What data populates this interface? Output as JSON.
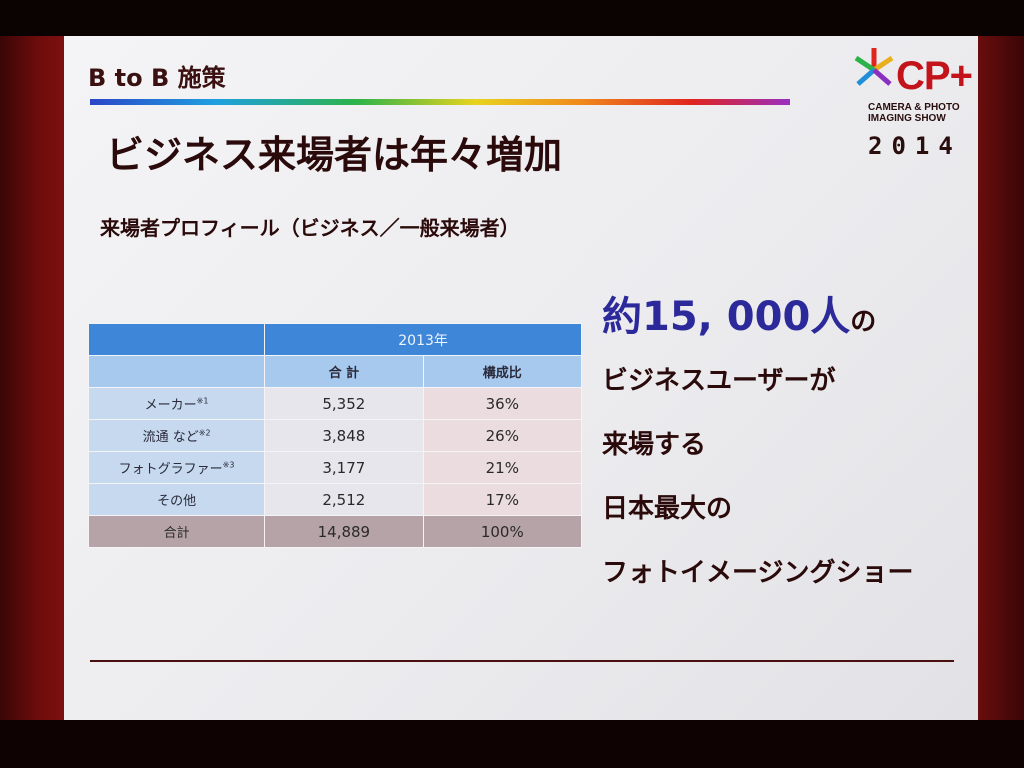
{
  "slide": {
    "section_label": "B to B 施策",
    "title": "ビジネス来場者は年々増加",
    "subtitle": "来場者プロフィール（ビジネス／一般来場者）"
  },
  "logo": {
    "brand": "CP+",
    "subline": "CAMERA & PHOTO IMAGING SHOW",
    "year": "2014",
    "colors": [
      "#c3131b",
      "#1f8fd8",
      "#2bb34a",
      "#e8b01e",
      "#8a2fc0"
    ]
  },
  "table": {
    "year_header": "2013年",
    "col_headers": [
      "合 計",
      "構成比"
    ],
    "rows": [
      {
        "label": "メーカー",
        "note": "※1",
        "total": "5,352",
        "share": "36%"
      },
      {
        "label": "流通 など",
        "note": "※2",
        "total": "3,848",
        "share": "26%"
      },
      {
        "label": "フォトグラファー",
        "note": "※3",
        "total": "3,177",
        "share": "21%"
      },
      {
        "label": "その他",
        "note": "",
        "total": "2,512",
        "share": "17%"
      }
    ],
    "total_row": {
      "label": "合計",
      "total": "14,889",
      "share": "100%"
    }
  },
  "callout": {
    "prefix": "約",
    "number": "15, 000人",
    "suffix": "の",
    "line2": "ビジネスユーザーが",
    "line3": "来場する",
    "line4": "日本最大の",
    "line5": "フォトイメージングショー"
  }
}
